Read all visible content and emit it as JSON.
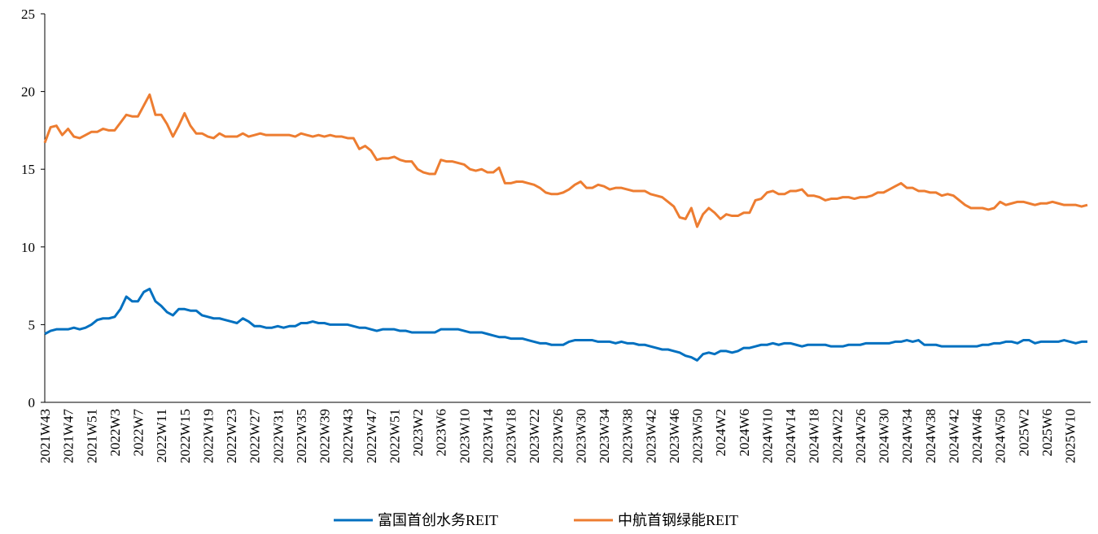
{
  "chart_data": {
    "type": "line",
    "categories": [
      "2021W43",
      null,
      null,
      null,
      "2021W47",
      null,
      null,
      null,
      "2021W51",
      null,
      null,
      null,
      "2022W3",
      null,
      null,
      null,
      "2022W7",
      null,
      null,
      null,
      "2022W11",
      null,
      null,
      null,
      "2022W15",
      null,
      null,
      null,
      "2022W19",
      null,
      null,
      null,
      "2022W23",
      null,
      null,
      null,
      "2022W27",
      null,
      null,
      null,
      "2022W31",
      null,
      null,
      null,
      "2022W35",
      null,
      null,
      null,
      "2022W39",
      null,
      null,
      null,
      "2022W43",
      null,
      null,
      null,
      "2022W47",
      null,
      null,
      null,
      "2022W51",
      null,
      null,
      null,
      "2023W2",
      null,
      null,
      null,
      "2023W6",
      null,
      null,
      null,
      "2023W10",
      null,
      null,
      null,
      "2023W14",
      null,
      null,
      null,
      "2023W18",
      null,
      null,
      null,
      "2023W22",
      null,
      null,
      null,
      "2023W26",
      null,
      null,
      null,
      "2023W30",
      null,
      null,
      null,
      "2023W34",
      null,
      null,
      null,
      "2023W38",
      null,
      null,
      null,
      "2023W42",
      null,
      null,
      null,
      "2023W46",
      null,
      null,
      null,
      "2023W50",
      null,
      null,
      null,
      "2024W2",
      null,
      null,
      null,
      "2024W6",
      null,
      null,
      null,
      "2024W10",
      null,
      null,
      null,
      "2024W14",
      null,
      null,
      null,
      "2024W18",
      null,
      null,
      null,
      "2024W22",
      null,
      null,
      null,
      "2024W26",
      null,
      null,
      null,
      "2024W30",
      null,
      null,
      null,
      "2024W34",
      null,
      null,
      null,
      "2024W38",
      null,
      null,
      null,
      "2024W42",
      null,
      null,
      null,
      "2024W46",
      null,
      null,
      null,
      "2024W50",
      null,
      null,
      null,
      "2025W2",
      null,
      null,
      null,
      "2025W6",
      null,
      null,
      null,
      "2025W10",
      null,
      null,
      null
    ],
    "series": [
      {
        "name": "富国首创水务REIT",
        "color": "#0070c0",
        "values": [
          4.4,
          4.6,
          4.7,
          4.7,
          4.7,
          4.8,
          4.7,
          4.8,
          5.0,
          5.3,
          5.4,
          5.4,
          5.5,
          6.0,
          6.8,
          6.5,
          6.5,
          7.1,
          7.3,
          6.5,
          6.2,
          5.8,
          5.6,
          6.0,
          6.0,
          5.9,
          5.9,
          5.6,
          5.5,
          5.4,
          5.4,
          5.3,
          5.2,
          5.1,
          5.4,
          5.2,
          4.9,
          4.9,
          4.8,
          4.8,
          4.9,
          4.8,
          4.9,
          4.9,
          5.1,
          5.1,
          5.2,
          5.1,
          5.1,
          5.0,
          5.0,
          5.0,
          5.0,
          4.9,
          4.8,
          4.8,
          4.7,
          4.6,
          4.7,
          4.7,
          4.7,
          4.6,
          4.6,
          4.5,
          4.5,
          4.5,
          4.5,
          4.5,
          4.7,
          4.7,
          4.7,
          4.7,
          4.6,
          4.5,
          4.5,
          4.5,
          4.4,
          4.3,
          4.2,
          4.2,
          4.1,
          4.1,
          4.1,
          4.0,
          3.9,
          3.8,
          3.8,
          3.7,
          3.7,
          3.7,
          3.9,
          4.0,
          4.0,
          4.0,
          4.0,
          3.9,
          3.9,
          3.9,
          3.8,
          3.9,
          3.8,
          3.8,
          3.7,
          3.7,
          3.6,
          3.5,
          3.4,
          3.4,
          3.3,
          3.2,
          3.0,
          2.9,
          2.7,
          3.1,
          3.2,
          3.1,
          3.3,
          3.3,
          3.2,
          3.3,
          3.5,
          3.5,
          3.6,
          3.7,
          3.7,
          3.8,
          3.7,
          3.8,
          3.8,
          3.7,
          3.6,
          3.7,
          3.7,
          3.7,
          3.7,
          3.6,
          3.6,
          3.6,
          3.7,
          3.7,
          3.7,
          3.8,
          3.8,
          3.8,
          3.8,
          3.8,
          3.9,
          3.9,
          4.0,
          3.9,
          4.0,
          3.7,
          3.7,
          3.7,
          3.6,
          3.6,
          3.6,
          3.6,
          3.6,
          3.6,
          3.6,
          3.7,
          3.7,
          3.8,
          3.8,
          3.9,
          3.9,
          3.8,
          4.0,
          4.0,
          3.8,
          3.9,
          3.9,
          3.9,
          3.9,
          4.0,
          3.9,
          3.8,
          3.9,
          3.9
        ]
      },
      {
        "name": "中航首钢绿能REIT",
        "color": "#ed7d31",
        "values": [
          16.7,
          17.7,
          17.8,
          17.2,
          17.6,
          17.1,
          17.0,
          17.2,
          17.4,
          17.4,
          17.6,
          17.5,
          17.5,
          18.0,
          18.5,
          18.4,
          18.4,
          19.1,
          19.8,
          18.5,
          18.5,
          17.9,
          17.1,
          17.8,
          18.6,
          17.8,
          17.3,
          17.3,
          17.1,
          17.0,
          17.3,
          17.1,
          17.1,
          17.1,
          17.3,
          17.1,
          17.2,
          17.3,
          17.2,
          17.2,
          17.2,
          17.2,
          17.2,
          17.1,
          17.3,
          17.2,
          17.1,
          17.2,
          17.1,
          17.2,
          17.1,
          17.1,
          17.0,
          17.0,
          16.3,
          16.5,
          16.2,
          15.6,
          15.7,
          15.7,
          15.8,
          15.6,
          15.5,
          15.5,
          15.0,
          14.8,
          14.7,
          14.7,
          15.6,
          15.5,
          15.5,
          15.4,
          15.3,
          15.0,
          14.9,
          15.0,
          14.8,
          14.8,
          15.1,
          14.1,
          14.1,
          14.2,
          14.2,
          14.1,
          14.0,
          13.8,
          13.5,
          13.4,
          13.4,
          13.5,
          13.7,
          14.0,
          14.2,
          13.8,
          13.8,
          14.0,
          13.9,
          13.7,
          13.8,
          13.8,
          13.7,
          13.6,
          13.6,
          13.6,
          13.4,
          13.3,
          13.2,
          12.9,
          12.6,
          11.9,
          11.8,
          12.5,
          11.3,
          12.1,
          12.5,
          12.2,
          11.8,
          12.1,
          12.0,
          12.0,
          12.2,
          12.2,
          13.0,
          13.1,
          13.5,
          13.6,
          13.4,
          13.4,
          13.6,
          13.6,
          13.7,
          13.3,
          13.3,
          13.2,
          13.0,
          13.1,
          13.1,
          13.2,
          13.2,
          13.1,
          13.2,
          13.2,
          13.3,
          13.5,
          13.5,
          13.7,
          13.9,
          14.1,
          13.8,
          13.8,
          13.6,
          13.6,
          13.5,
          13.5,
          13.3,
          13.4,
          13.3,
          13.0,
          12.7,
          12.5,
          12.5,
          12.5,
          12.4,
          12.5,
          12.9,
          12.7,
          12.8,
          12.9,
          12.9,
          12.8,
          12.7,
          12.8,
          12.8,
          12.9,
          12.8,
          12.7,
          12.7,
          12.7,
          12.6,
          12.7
        ]
      }
    ],
    "ylim": [
      0,
      25
    ],
    "yticks": [
      0,
      5,
      10,
      15,
      20,
      25
    ],
    "grid": false,
    "legend": "bottom"
  }
}
